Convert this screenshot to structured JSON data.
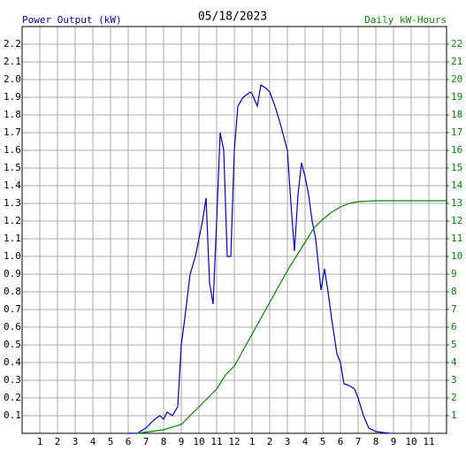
{
  "chart_data": {
    "type": "line",
    "title": "05/18/2023",
    "ylabel": "Power Output (kW)",
    "y2label": "Daily kW-Hours",
    "xlim": [
      0,
      24
    ],
    "xticks": [
      1,
      2,
      3,
      4,
      5,
      6,
      7,
      8,
      9,
      10,
      11,
      12,
      {
        "value": 13,
        "label": "1"
      },
      {
        "value": 14,
        "label": "2"
      },
      {
        "value": 15,
        "label": "3"
      },
      {
        "value": 16,
        "label": "4"
      },
      {
        "value": 17,
        "label": "5"
      },
      {
        "value": 18,
        "label": "6"
      },
      {
        "value": 19,
        "label": "7"
      },
      {
        "value": 20,
        "label": "8"
      },
      {
        "value": 21,
        "label": "9"
      },
      {
        "value": 22,
        "label": "10"
      },
      {
        "value": 23,
        "label": "11"
      }
    ],
    "ylim": [
      0,
      2.3
    ],
    "yticks": [
      0.1,
      0.2,
      0.3,
      0.4,
      0.5,
      0.6,
      0.7,
      0.8,
      0.9,
      {
        "value": 1,
        "label": "1.0"
      },
      1.1,
      1.2,
      1.3,
      1.4,
      1.5,
      1.6,
      1.7,
      1.8,
      1.9,
      {
        "value": 2,
        "label": "2.0"
      },
      2.1,
      2.2
    ],
    "y2lim": [
      0,
      23
    ],
    "y2ticks": [
      1,
      2,
      3,
      4,
      5,
      6,
      7,
      8,
      9,
      10,
      11,
      12,
      13,
      14,
      15,
      16,
      17,
      18,
      19,
      20,
      21,
      22
    ],
    "grid": true,
    "series": [
      {
        "name": "Power Output (kW)",
        "color": "#0000cc",
        "x": [
          6,
          6.5,
          7,
          7.5,
          7.8,
          8,
          8.2,
          8.5,
          8.8,
          9,
          9.2,
          9.5,
          9.8,
          10,
          10.2,
          10.4,
          10.6,
          10.8,
          11,
          11.2,
          11.4,
          11.6,
          11.8,
          12,
          12.2,
          12.5,
          12.9,
          13,
          13.3,
          13.5,
          13.8,
          14,
          14.3,
          14.6,
          15,
          15.2,
          15.4,
          15.6,
          15.8,
          16,
          16.2,
          16.4,
          16.6,
          16.9,
          17.1,
          17.3,
          17.5,
          17.8,
          18,
          18.2,
          18.5,
          18.8,
          19,
          19.3,
          19.6,
          20,
          20.8
        ],
        "values": [
          0,
          0,
          0.03,
          0.08,
          0.1,
          0.08,
          0.12,
          0.1,
          0.15,
          0.5,
          0.65,
          0.9,
          1.0,
          1.1,
          1.2,
          1.33,
          0.85,
          0.73,
          1.2,
          1.7,
          1.6,
          1.0,
          1.0,
          1.6,
          1.85,
          1.9,
          1.93,
          1.92,
          1.85,
          1.97,
          1.95,
          1.93,
          1.85,
          1.75,
          1.6,
          1.3,
          1.03,
          1.35,
          1.53,
          1.45,
          1.35,
          1.2,
          1.1,
          0.81,
          0.93,
          0.8,
          0.65,
          0.45,
          0.4,
          0.28,
          0.27,
          0.25,
          0.2,
          0.1,
          0.03,
          0.01,
          0
        ]
      },
      {
        "name": "Daily kW-Hours",
        "color": "#008800",
        "axis": "y2",
        "x": [
          6.5,
          8,
          9,
          9.5,
          10,
          10.5,
          11,
          11.5,
          12,
          12.5,
          13,
          13.5,
          14,
          14.5,
          15,
          15.5,
          16,
          16.5,
          17,
          17.5,
          18,
          18.5,
          19,
          20,
          24
        ],
        "values": [
          0,
          0.2,
          0.5,
          1,
          1.5,
          2,
          2.5,
          3.3,
          3.8,
          4.7,
          5.6,
          6.5,
          7.4,
          8.3,
          9.2,
          10,
          10.8,
          11.6,
          12.1,
          12.5,
          12.8,
          13,
          13.1,
          13.15,
          13.15
        ]
      }
    ]
  }
}
